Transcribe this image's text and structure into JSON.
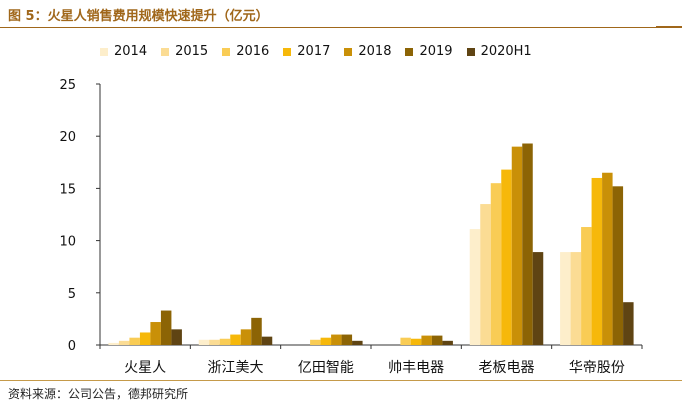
{
  "title": "图 5：火星人销售费用规模快速提升（亿元）",
  "source": "资料来源：公司公告，德邦研究所",
  "colors": [
    "#fdeecb",
    "#fbdc94",
    "#f9cc55",
    "#f6b80a",
    "#c99008",
    "#8c6405",
    "#5f4413"
  ],
  "chart_data": {
    "type": "bar",
    "categories": [
      "火星人",
      "浙江美大",
      "亿田智能",
      "帅丰电器",
      "老板电器",
      "华帝股份"
    ],
    "series": [
      {
        "name": "2014",
        "values": [
          0.2,
          0.5,
          0.0,
          0.0,
          11.1,
          8.9
        ]
      },
      {
        "name": "2015",
        "values": [
          0.4,
          0.5,
          0.0,
          0.0,
          13.5,
          8.9
        ]
      },
      {
        "name": "2016",
        "values": [
          0.7,
          0.6,
          0.5,
          0.7,
          15.5,
          11.3
        ]
      },
      {
        "name": "2017",
        "values": [
          1.2,
          1.0,
          0.7,
          0.6,
          16.8,
          16.0
        ]
      },
      {
        "name": "2018",
        "values": [
          2.2,
          1.5,
          1.0,
          0.9,
          19.0,
          16.5
        ]
      },
      {
        "name": "2019",
        "values": [
          3.3,
          2.6,
          1.0,
          0.9,
          19.3,
          15.2
        ]
      },
      {
        "name": "2020H1",
        "values": [
          1.5,
          0.8,
          0.4,
          0.4,
          8.9,
          4.1
        ]
      }
    ],
    "ylim": [
      0,
      25
    ],
    "yticks": [
      0,
      5,
      10,
      15,
      20,
      25
    ],
    "legend_position": "top",
    "grid": false
  }
}
